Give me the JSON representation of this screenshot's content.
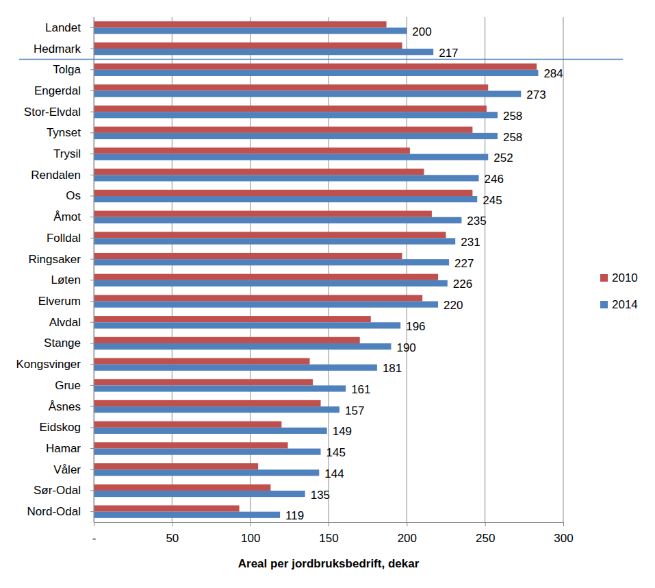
{
  "chart_data": {
    "type": "bar",
    "orientation": "horizontal",
    "x_label": "Areal per jordbruksbedrift, dekar",
    "categories": [
      "Landet",
      "Hedmark",
      "Tolga",
      "Engerdal",
      "Stor-Elvdal",
      "Tynset",
      "Trysil",
      "Rendalen",
      "Os",
      "Åmot",
      "Folldal",
      "Ringsaker",
      "Løten",
      "Elverum",
      "Alvdal",
      "Stange",
      "Kongsvinger",
      "Grue",
      "Åsnes",
      "Eidskog",
      "Hamar",
      "Våler",
      "Sør-Odal",
      "Nord-Odal"
    ],
    "series": [
      {
        "name": "2010",
        "color": "#c0504d",
        "values": [
          187,
          197,
          283,
          252,
          251,
          242,
          202,
          211,
          242,
          216,
          225,
          197,
          220,
          210,
          177,
          170,
          138,
          140,
          145,
          120,
          124,
          105,
          113,
          93
        ]
      },
      {
        "name": "2014",
        "color": "#4f81bd",
        "data_labels": true,
        "values": [
          200,
          217,
          284,
          273,
          258,
          258,
          252,
          246,
          245,
          235,
          231,
          227,
          226,
          220,
          196,
          190,
          181,
          161,
          157,
          149,
          145,
          144,
          135,
          119
        ]
      }
    ],
    "xlim": [
      0,
      300
    ],
    "xticks": [
      {
        "value": 0,
        "label": "-"
      },
      50,
      100,
      150,
      200,
      250,
      300
    ],
    "grid": true,
    "legend": "right"
  }
}
